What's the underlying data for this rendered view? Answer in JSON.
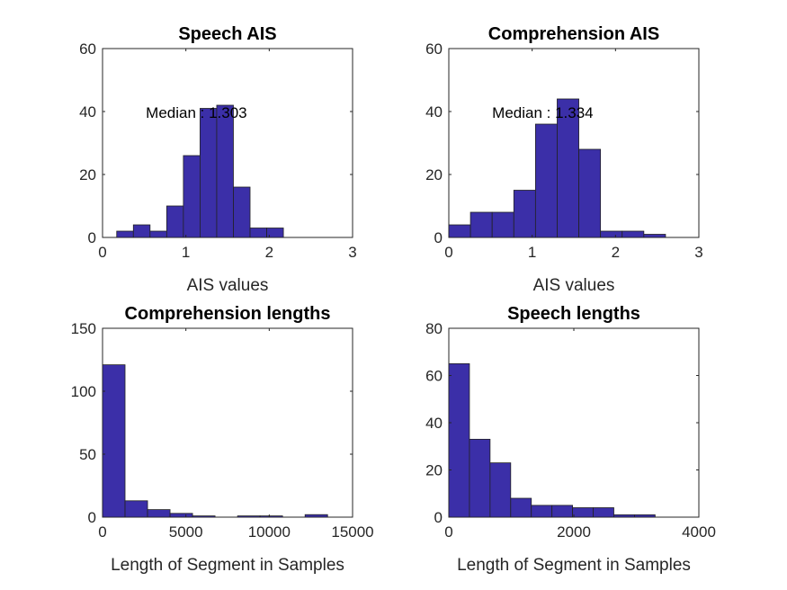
{
  "chart_data": [
    {
      "type": "bar",
      "title": "Speech AIS",
      "xlabel": "AIS values",
      "ylabel": "",
      "xlim": [
        0,
        3
      ],
      "ylim": [
        0,
        60
      ],
      "xticks": [
        "0",
        "1",
        "2",
        "3"
      ],
      "yticks": [
        "0",
        "20",
        "40",
        "60"
      ],
      "bin_edges": [
        0.17,
        0.37,
        0.57,
        0.77,
        0.97,
        1.17,
        1.37,
        1.57,
        1.77,
        1.97,
        2.17
      ],
      "counts": [
        2,
        4,
        2,
        10,
        26,
        41,
        42,
        16,
        3,
        3
      ],
      "annotation": {
        "text": "Median : 1.303",
        "x": 0.52,
        "y": 38
      },
      "grid": false,
      "bar_color": "#3b2fa8"
    },
    {
      "type": "bar",
      "title": "Comprehension AIS",
      "xlabel": "AIS values",
      "ylabel": "",
      "xlim": [
        0,
        3
      ],
      "ylim": [
        0,
        60
      ],
      "xticks": [
        "0",
        "1",
        "2",
        "3"
      ],
      "yticks": [
        "0",
        "20",
        "40",
        "60"
      ],
      "bin_edges": [
        0.0,
        0.26,
        0.52,
        0.78,
        1.04,
        1.3,
        1.56,
        1.82,
        2.08,
        2.34,
        2.6
      ],
      "counts": [
        4,
        8,
        8,
        15,
        36,
        44,
        28,
        2,
        2,
        1
      ],
      "annotation": {
        "text": "Median : 1.334",
        "x": 0.52,
        "y": 38
      },
      "grid": false,
      "bar_color": "#3b2fa8"
    },
    {
      "type": "bar",
      "title": "Comprehension lengths",
      "xlabel": "Length of Segment in Samples",
      "ylabel": "",
      "xlim": [
        0,
        15000
      ],
      "ylim": [
        0,
        150
      ],
      "xticks": [
        "0",
        "5000",
        "10000",
        "15000"
      ],
      "yticks": [
        "0",
        "50",
        "100",
        "150"
      ],
      "bin_edges": [
        0,
        1350,
        2700,
        4050,
        5400,
        6750,
        8100,
        9450,
        10800,
        12150,
        13500
      ],
      "counts": [
        121,
        13,
        6,
        3,
        1,
        0,
        1,
        1,
        0,
        2
      ],
      "grid": false,
      "bar_color": "#3b2fa8"
    },
    {
      "type": "bar",
      "title": "Speech lengths",
      "xlabel": "Length of Segment in Samples",
      "ylabel": "",
      "xlim": [
        0,
        4000
      ],
      "ylim": [
        0,
        80
      ],
      "xticks": [
        "0",
        "2000",
        "4000"
      ],
      "yticks": [
        "0",
        "20",
        "40",
        "60",
        "80"
      ],
      "bin_edges": [
        0,
        330,
        660,
        990,
        1320,
        1650,
        1980,
        2310,
        2640,
        2970,
        3300
      ],
      "counts": [
        65,
        33,
        23,
        8,
        5,
        5,
        4,
        4,
        1,
        1
      ],
      "grid": false,
      "bar_color": "#3b2fa8"
    }
  ]
}
